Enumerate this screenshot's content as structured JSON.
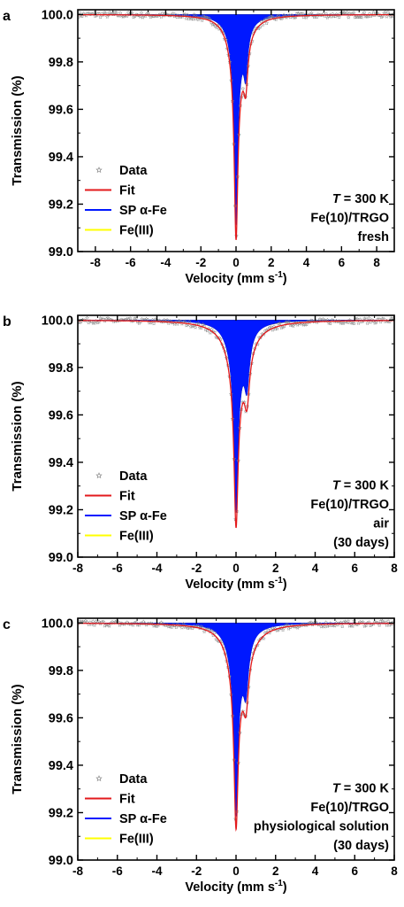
{
  "chart_data": [
    {
      "panel_label": "a",
      "type": "line",
      "xlabel_main": "Velocity (mm s",
      "xlabel_sup": "-1",
      "xlabel_tail": ")",
      "ylabel": "Transmission (%)",
      "xlim": [
        -9,
        9
      ],
      "ylim": [
        99.0,
        100.02
      ],
      "xticks": [
        -8,
        -6,
        -4,
        -2,
        0,
        2,
        4,
        6,
        8
      ],
      "yticks": [
        99.0,
        99.2,
        99.4,
        99.6,
        99.8,
        100.0
      ],
      "ytick_labels": [
        "99.0",
        "99.2",
        "99.4",
        "99.6",
        "99.8",
        "100.0"
      ],
      "legend": [
        "Data",
        "Fit",
        "SP α-Fe",
        "Fe(III)"
      ],
      "annotation_lines": [
        "T = 300 K",
        "Fe(10)/TRGO",
        "fresh"
      ],
      "series": [
        {
          "name": "Data",
          "marker": "star",
          "color": "#888888"
        },
        {
          "name": "Fit",
          "color": "#e31a1c"
        },
        {
          "name": "SP α-Fe",
          "color": "#0018ff",
          "components": [
            {
              "center": 0.0,
              "depth": 0.7,
              "hwhm": 0.12
            },
            {
              "center": 0.05,
              "depth": 0.18,
              "hwhm": 0.45
            },
            {
              "center": 0.55,
              "depth": 0.18,
              "hwhm": 0.14
            }
          ]
        },
        {
          "name": "Fe(III)",
          "color": "#ffff00",
          "components": [
            {
              "center": 0.25,
              "depth": 0.075,
              "hwhm": 0.55
            }
          ]
        }
      ]
    },
    {
      "panel_label": "b",
      "type": "line",
      "xlabel_main": "Velocity (mm s",
      "xlabel_sup": "-1",
      "xlabel_tail": ")",
      "ylabel": "Transmission (%)",
      "xlim": [
        -8,
        8
      ],
      "ylim": [
        99.0,
        100.02
      ],
      "xticks": [
        -8,
        -6,
        -4,
        -2,
        0,
        2,
        4,
        6,
        8
      ],
      "yticks": [
        99.0,
        99.2,
        99.4,
        99.6,
        99.8,
        100.0
      ],
      "ytick_labels": [
        "99.0",
        "99.2",
        "99.4",
        "99.6",
        "99.8",
        "100.0"
      ],
      "legend": [
        "Data",
        "Fit",
        "SP α-Fe",
        "Fe(III)"
      ],
      "annotation_lines": [
        "T = 300 K",
        "Fe(10)/TRGO",
        "air",
        "(30 days)"
      ],
      "series": [
        {
          "name": "Data",
          "marker": "star",
          "color": "#888888"
        },
        {
          "name": "Fit",
          "color": "#e31a1c"
        },
        {
          "name": "SP α-Fe",
          "color": "#0018ff",
          "components": [
            {
              "center": 0.0,
              "depth": 0.6,
              "hwhm": 0.12
            },
            {
              "center": 0.05,
              "depth": 0.2,
              "hwhm": 0.45
            },
            {
              "center": 0.55,
              "depth": 0.2,
              "hwhm": 0.16
            }
          ]
        },
        {
          "name": "Fe(III)",
          "color": "#ffff00",
          "components": [
            {
              "center": 0.3,
              "depth": 0.07,
              "hwhm": 0.9
            }
          ]
        }
      ]
    },
    {
      "panel_label": "c",
      "type": "line",
      "xlabel_main": "Velocity (mm s",
      "xlabel_sup": "-1",
      "xlabel_tail": ")",
      "ylabel": "Transmission (%)",
      "xlim": [
        -8,
        8
      ],
      "ylim": [
        99.0,
        100.02
      ],
      "xticks": [
        -8,
        -6,
        -4,
        -2,
        0,
        2,
        4,
        6,
        8
      ],
      "yticks": [
        99.0,
        99.2,
        99.4,
        99.6,
        99.8,
        100.0
      ],
      "ytick_labels": [
        "99.0",
        "99.2",
        "99.4",
        "99.6",
        "99.8",
        "100.0"
      ],
      "legend": [
        "Data",
        "Fit",
        "SP α-Fe",
        "Fe(III)"
      ],
      "annotation_lines": [
        "T = 300 K",
        "Fe(10)/TRGO",
        "physiological solution",
        "(30 days)"
      ],
      "series": [
        {
          "name": "Data",
          "marker": "star",
          "color": "#888888"
        },
        {
          "name": "Fit",
          "color": "#e31a1c"
        },
        {
          "name": "SP α-Fe",
          "color": "#0018ff",
          "components": [
            {
              "center": 0.0,
              "depth": 0.6,
              "hwhm": 0.12
            },
            {
              "center": 0.05,
              "depth": 0.2,
              "hwhm": 0.45
            },
            {
              "center": 0.5,
              "depth": 0.2,
              "hwhm": 0.16
            }
          ]
        },
        {
          "name": "Fe(III)",
          "color": "#ffff00",
          "components": [
            {
              "center": 0.35,
              "depth": 0.065,
              "hwhm": 0.8
            }
          ]
        }
      ]
    }
  ]
}
